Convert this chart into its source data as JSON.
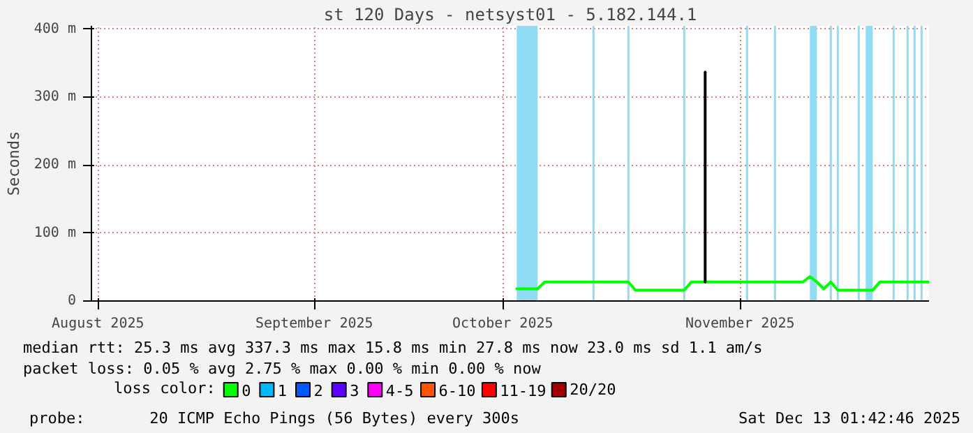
{
  "chart_data": {
    "type": "line",
    "title": "st 120 Days - netsyst01 - 5.182.144.1",
    "ylabel": "Seconds",
    "xlim": [
      "2025-08-15T01:42",
      "2025-12-13T01:42"
    ],
    "xticks": [
      {
        "value": "2025-08-16",
        "label": "August 2025"
      },
      {
        "value": "2025-09-16",
        "label": "September 2025"
      },
      {
        "value": "2025-10-13",
        "label": "October 2025"
      },
      {
        "value": "2025-11-16",
        "label": "November 2025"
      }
    ],
    "ylim": [
      0,
      405
    ],
    "yticks": [
      0,
      {
        "value": 100,
        "label": "100 m"
      },
      {
        "value": 200,
        "label": "200 m"
      },
      {
        "value": 300,
        "label": "300 m"
      },
      {
        "value": 400,
        "label": "400 m"
      }
    ],
    "grid": true,
    "legend": "bottom",
    "legend_title": "loss color:",
    "series": [
      {
        "name": "0",
        "color": "#00ff00",
        "x": [
          "2025-10-15",
          "2025-10-18",
          "2025-10-19",
          "2025-10-31",
          "2025-11-01",
          "2025-11-08",
          "2025-11-09",
          "2025-11-25",
          "2025-11-26",
          "2025-11-27",
          "2025-11-28",
          "2025-11-29",
          "2025-11-30",
          "2025-12-05",
          "2025-12-06",
          "2025-12-13"
        ],
        "values": [
          18,
          18,
          28,
          28,
          16,
          16,
          28,
          28,
          36,
          28,
          18,
          28,
          16,
          16,
          28,
          28
        ]
      },
      {
        "color": "#000000",
        "x": [
          "2025-11-11",
          "2025-11-11"
        ],
        "values": [
          28,
          337
        ]
      },
      {
        "name": "1",
        "color": "#00b8ff"
      },
      {
        "name": "2",
        "color": "#0059ff"
      },
      {
        "name": "3",
        "color": "#5e00ff"
      },
      {
        "name": "4-5",
        "color": "#ff00ff"
      },
      {
        "name": "6-10",
        "color": "#ff5500"
      },
      {
        "name": "11-19",
        "color": "#ff0000"
      },
      {
        "name": "20/20",
        "color": "#a10000"
      }
    ],
    "bands": [
      {
        "axis": "x",
        "from": "2025-10-15",
        "to": "2025-10-18",
        "color": "#8fdcf5"
      },
      {
        "axis": "x",
        "from": "2025-11-26",
        "to": "2025-11-27",
        "color": "#8fdcf5"
      },
      {
        "axis": "x",
        "from": "2025-12-04",
        "to": "2025-12-05",
        "color": "#8fdcf5"
      }
    ],
    "ref_lines": [
      {
        "axis": "x",
        "value": "2025-10-26",
        "color": "#8fdcf5"
      },
      {
        "axis": "x",
        "value": "2025-10-31",
        "color": "#8fdcf5"
      },
      {
        "axis": "x",
        "value": "2025-11-08",
        "color": "#8fdcf5"
      },
      {
        "axis": "x",
        "value": "2025-11-17",
        "color": "#8fdcf5"
      },
      {
        "axis": "x",
        "value": "2025-11-21",
        "color": "#8fdcf5"
      },
      {
        "axis": "x",
        "value": "2025-11-29",
        "color": "#8fdcf5"
      },
      {
        "axis": "x",
        "value": "2025-11-30",
        "color": "#8fdcf5"
      },
      {
        "axis": "x",
        "value": "2025-12-03",
        "color": "#8fdcf5"
      },
      {
        "axis": "x",
        "value": "2025-12-08",
        "color": "#8fdcf5"
      },
      {
        "axis": "x",
        "value": "2025-12-10",
        "color": "#8fdcf5"
      },
      {
        "axis": "x",
        "value": "2025-12-11",
        "color": "#8fdcf5"
      },
      {
        "axis": "x",
        "value": "2025-12-12",
        "color": "#8fdcf5"
      }
    ],
    "annotations": [
      "median rtt:  25.3 ms avg  337.3 ms max  15.8 ms min  27.8 ms now  23.0 ms sd  1.1   am/s",
      "packet loss: 0.05 % avg  2.75 % max  0.00 % min  0.00 % now",
      "probe:       20 ICMP Echo Pings (56 Bytes) every 300s",
      "Sat Dec 13 01:42:46 2025"
    ]
  }
}
